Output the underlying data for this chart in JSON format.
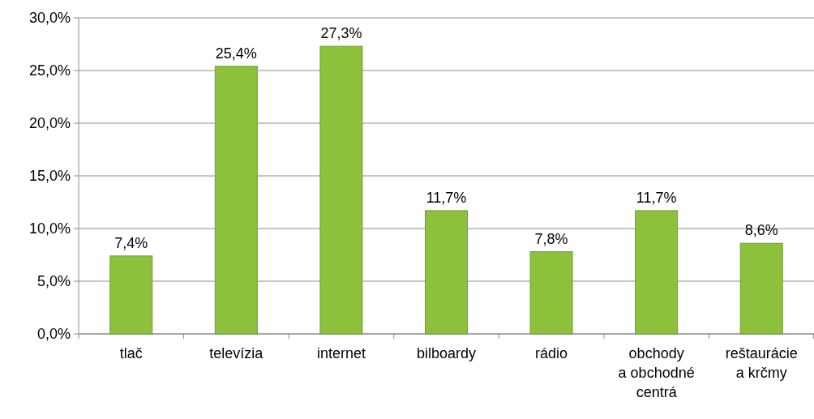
{
  "chart_data": {
    "type": "bar",
    "categories": [
      "tlač",
      "televízia",
      "internet",
      "bilboardy",
      "rádio",
      "obchody\na obchodné\ncentrá",
      "reštaurácie\na krčmy"
    ],
    "values": [
      7.4,
      25.4,
      27.3,
      11.7,
      7.8,
      11.7,
      8.6
    ],
    "value_labels": [
      "7,4%",
      "25,4%",
      "27,3%",
      "11,7%",
      "7,8%",
      "11,7%",
      "8,6%"
    ],
    "color": "#8dc13c",
    "ylim": [
      0,
      30
    ],
    "yticks": [
      {
        "value": 0,
        "label": "0,0%"
      },
      {
        "value": 5,
        "label": "5,0%"
      },
      {
        "value": 10,
        "label": "10,0%"
      },
      {
        "value": 15,
        "label": "15,0%"
      },
      {
        "value": 20,
        "label": "20,0%"
      },
      {
        "value": 25,
        "label": "25,0%"
      },
      {
        "value": 30,
        "label": "30,0%"
      }
    ],
    "grid": "y"
  }
}
